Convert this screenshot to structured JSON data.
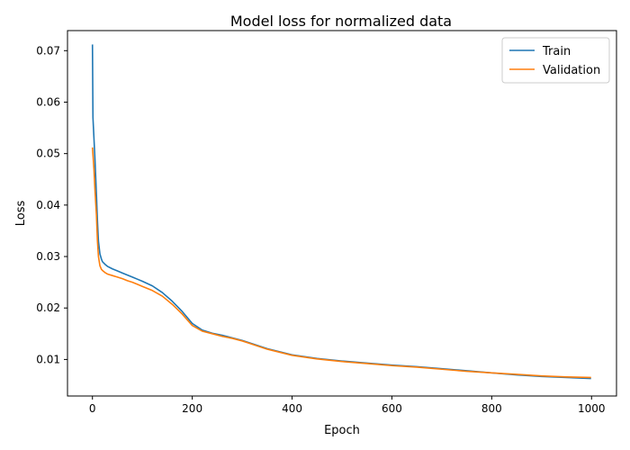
{
  "chart_data": {
    "type": "line",
    "title": "Model loss for normalized data",
    "xlabel": "Epoch",
    "ylabel": "Loss",
    "xlim": [
      -50,
      1050
    ],
    "ylim": [
      0.0029,
      0.0739
    ],
    "xticks": [
      0,
      200,
      400,
      600,
      800,
      1000
    ],
    "yticks": [
      0.01,
      0.02,
      0.03,
      0.04,
      0.05,
      0.06,
      0.07
    ],
    "xtick_labels": [
      "0",
      "200",
      "400",
      "600",
      "800",
      "1000"
    ],
    "ytick_labels": [
      "0.01",
      "0.02",
      "0.03",
      "0.04",
      "0.05",
      "0.06",
      "0.07"
    ],
    "grid": false,
    "legend_position": "top-right",
    "series": [
      {
        "name": "Train",
        "color": "#1f77b4",
        "x": [
          0,
          1,
          3,
          5,
          8,
          10,
          12,
          15,
          18,
          20,
          25,
          30,
          40,
          50,
          60,
          70,
          80,
          90,
          100,
          120,
          140,
          160,
          180,
          200,
          220,
          240,
          260,
          280,
          300,
          350,
          400,
          450,
          500,
          550,
          600,
          650,
          700,
          750,
          800,
          850,
          900,
          950,
          999
        ],
        "y": [
          0.0712,
          0.057,
          0.053,
          0.049,
          0.042,
          0.037,
          0.033,
          0.0305,
          0.0295,
          0.029,
          0.0285,
          0.0281,
          0.0276,
          0.0272,
          0.0268,
          0.0264,
          0.026,
          0.0256,
          0.0252,
          0.0243,
          0.023,
          0.0213,
          0.0193,
          0.017,
          0.0157,
          0.0151,
          0.0147,
          0.0142,
          0.0137,
          0.0121,
          0.0109,
          0.0102,
          0.0097,
          0.0093,
          0.0089,
          0.0086,
          0.0082,
          0.0078,
          0.0074,
          0.007,
          0.0067,
          0.0065,
          0.0063
        ]
      },
      {
        "name": "Validation",
        "color": "#ff7f0e",
        "x": [
          0,
          3,
          5,
          8,
          10,
          12,
          15,
          18,
          20,
          25,
          30,
          40,
          50,
          60,
          70,
          80,
          90,
          100,
          120,
          140,
          160,
          180,
          200,
          220,
          240,
          260,
          280,
          300,
          350,
          400,
          450,
          500,
          550,
          600,
          650,
          700,
          750,
          800,
          850,
          900,
          950,
          999
        ],
        "y": [
          0.0512,
          0.047,
          0.043,
          0.038,
          0.033,
          0.03,
          0.0282,
          0.0275,
          0.0273,
          0.0269,
          0.0266,
          0.0263,
          0.026,
          0.0257,
          0.0253,
          0.025,
          0.0246,
          0.0242,
          0.0234,
          0.0223,
          0.0207,
          0.0188,
          0.0166,
          0.0155,
          0.015,
          0.0145,
          0.0141,
          0.0136,
          0.012,
          0.0108,
          0.0101,
          0.0096,
          0.0092,
          0.0088,
          0.0085,
          0.0081,
          0.0077,
          0.0074,
          0.0071,
          0.0068,
          0.0066,
          0.0065
        ]
      }
    ]
  }
}
